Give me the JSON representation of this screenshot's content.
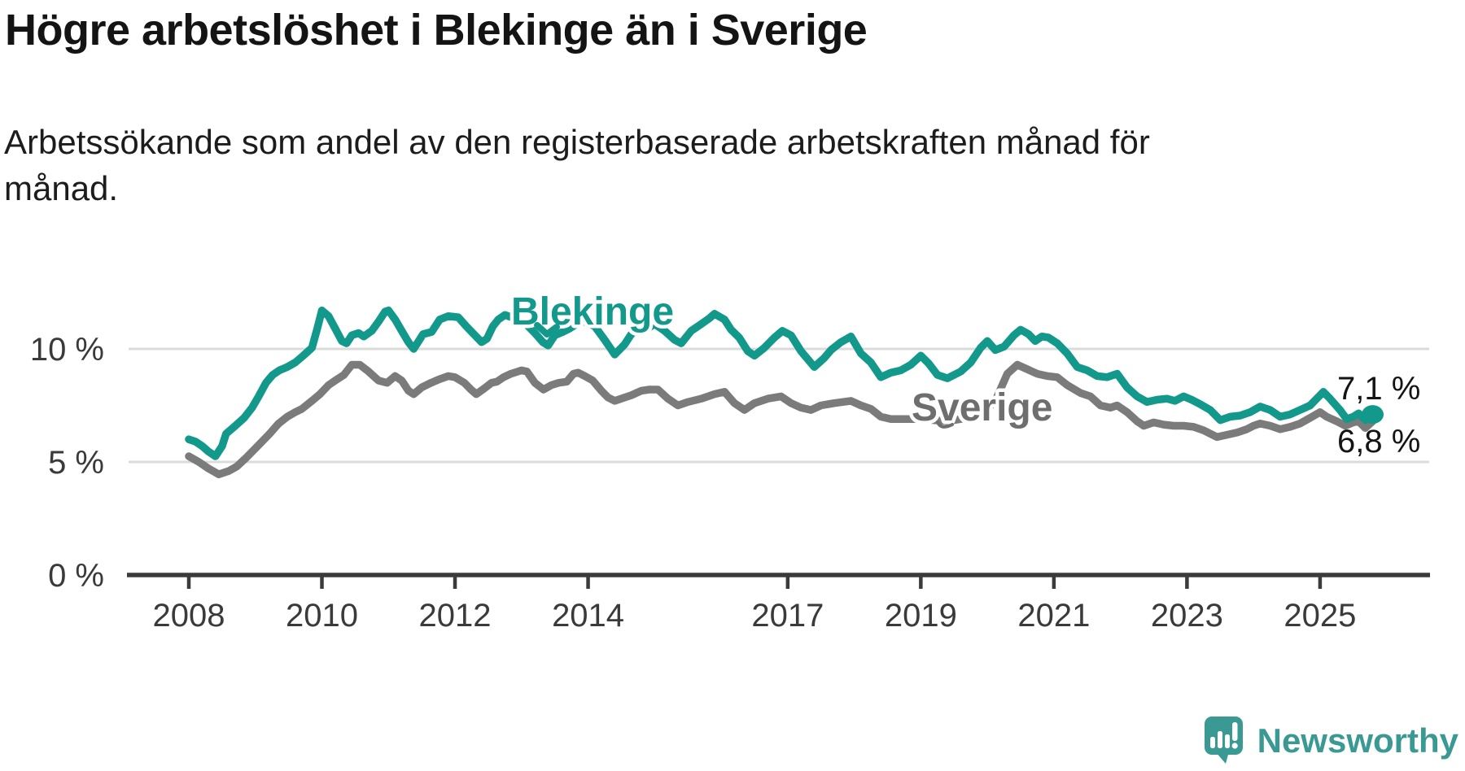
{
  "header": {
    "title": "Högre arbetslöshet i Blekinge än i Sverige",
    "subtitle_line1": "Arbetssökande som andel av den registerbaserade arbetskraften månad för",
    "subtitle_line2": "månad."
  },
  "branding": {
    "logo_text": "Newsworthy",
    "logo_color": "#3a9a93"
  },
  "chart_data": {
    "type": "line",
    "title": "Högre arbetslöshet i Blekinge än i Sverige",
    "subtitle": "Arbetssökande som andel av den registerbaserade arbetskraften månad för månad.",
    "unit": "%",
    "grid": "horizontal-only",
    "legend_position": "inline-labels",
    "colors": {
      "blekinge": "#12998b",
      "sverige": "#7b7b7b",
      "gridline": "#dbdbdb",
      "axis": "#3b3b3b"
    },
    "x_axis": {
      "range": [
        2008.0,
        2025.83
      ],
      "tick_labels": [
        "2008",
        "2010",
        "2012",
        "2014",
        "2017",
        "2019",
        "2021",
        "2023",
        "2025"
      ],
      "tick_values": [
        2008,
        2010,
        2012,
        2014,
        2017,
        2019,
        2021,
        2023,
        2025
      ]
    },
    "y_axis": {
      "range": [
        0,
        12.6
      ],
      "ticks": [
        {
          "value": 0,
          "label": "0 %"
        },
        {
          "value": 5,
          "label": "5 %"
        },
        {
          "value": 10,
          "label": "10 %"
        }
      ]
    },
    "series": [
      {
        "name": "Blekinge",
        "color": "#12998b",
        "end_label": "7,1 %",
        "end_value": 7.1,
        "points": [
          [
            2008.0,
            6.0
          ],
          [
            2008.1,
            5.9
          ],
          [
            2008.2,
            5.7
          ],
          [
            2008.3,
            5.45
          ],
          [
            2008.4,
            5.25
          ],
          [
            2008.5,
            5.7
          ],
          [
            2008.56,
            6.25
          ],
          [
            2008.7,
            6.6
          ],
          [
            2008.83,
            6.95
          ],
          [
            2008.95,
            7.4
          ],
          [
            2009.05,
            7.9
          ],
          [
            2009.16,
            8.5
          ],
          [
            2009.26,
            8.85
          ],
          [
            2009.36,
            9.05
          ],
          [
            2009.48,
            9.2
          ],
          [
            2009.6,
            9.4
          ],
          [
            2009.72,
            9.7
          ],
          [
            2009.85,
            10.05
          ],
          [
            2009.93,
            10.9
          ],
          [
            2010.0,
            11.7
          ],
          [
            2010.1,
            11.45
          ],
          [
            2010.2,
            10.9
          ],
          [
            2010.3,
            10.35
          ],
          [
            2010.37,
            10.25
          ],
          [
            2010.45,
            10.6
          ],
          [
            2010.55,
            10.7
          ],
          [
            2010.63,
            10.55
          ],
          [
            2010.75,
            10.8
          ],
          [
            2010.85,
            11.2
          ],
          [
            2010.95,
            11.65
          ],
          [
            2011.0,
            11.7
          ],
          [
            2011.1,
            11.3
          ],
          [
            2011.2,
            10.8
          ],
          [
            2011.3,
            10.3
          ],
          [
            2011.38,
            10.0
          ],
          [
            2011.52,
            10.65
          ],
          [
            2011.65,
            10.75
          ],
          [
            2011.77,
            11.3
          ],
          [
            2011.9,
            11.45
          ],
          [
            2012.05,
            11.4
          ],
          [
            2012.17,
            11.0
          ],
          [
            2012.3,
            10.6
          ],
          [
            2012.4,
            10.3
          ],
          [
            2012.48,
            10.45
          ],
          [
            2012.57,
            11.0
          ],
          [
            2012.65,
            11.3
          ],
          [
            2012.75,
            11.5
          ],
          [
            2012.9,
            11.35
          ],
          [
            2013.05,
            11.15
          ],
          [
            2013.2,
            10.7
          ],
          [
            2013.32,
            10.3
          ],
          [
            2013.4,
            10.15
          ],
          [
            2013.5,
            10.6
          ],
          [
            2013.62,
            10.75
          ],
          [
            2013.72,
            10.9
          ],
          [
            2013.85,
            11.15
          ],
          [
            2013.95,
            11.2
          ],
          [
            2014.1,
            11.0
          ],
          [
            2014.25,
            10.4
          ],
          [
            2014.4,
            9.75
          ],
          [
            2014.55,
            10.2
          ],
          [
            2014.65,
            10.65
          ],
          [
            2014.75,
            10.9
          ],
          [
            2014.82,
            10.75
          ],
          [
            2014.92,
            10.95
          ],
          [
            2015.0,
            11.1
          ],
          [
            2015.15,
            10.8
          ],
          [
            2015.3,
            10.4
          ],
          [
            2015.4,
            10.25
          ],
          [
            2015.55,
            10.8
          ],
          [
            2015.7,
            11.1
          ],
          [
            2015.82,
            11.35
          ],
          [
            2015.9,
            11.55
          ],
          [
            2016.05,
            11.3
          ],
          [
            2016.15,
            10.85
          ],
          [
            2016.27,
            10.5
          ],
          [
            2016.4,
            9.9
          ],
          [
            2016.5,
            9.7
          ],
          [
            2016.65,
            10.05
          ],
          [
            2016.8,
            10.5
          ],
          [
            2016.92,
            10.8
          ],
          [
            2017.05,
            10.6
          ],
          [
            2017.2,
            9.9
          ],
          [
            2017.4,
            9.2
          ],
          [
            2017.55,
            9.6
          ],
          [
            2017.65,
            9.95
          ],
          [
            2017.8,
            10.3
          ],
          [
            2017.95,
            10.55
          ],
          [
            2018.1,
            9.8
          ],
          [
            2018.25,
            9.4
          ],
          [
            2018.4,
            8.75
          ],
          [
            2018.55,
            8.95
          ],
          [
            2018.7,
            9.05
          ],
          [
            2018.85,
            9.3
          ],
          [
            2019.0,
            9.7
          ],
          [
            2019.12,
            9.35
          ],
          [
            2019.25,
            8.85
          ],
          [
            2019.4,
            8.7
          ],
          [
            2019.6,
            9.0
          ],
          [
            2019.75,
            9.4
          ],
          [
            2019.9,
            10.05
          ],
          [
            2020.0,
            10.35
          ],
          [
            2020.12,
            9.95
          ],
          [
            2020.25,
            10.1
          ],
          [
            2020.4,
            10.6
          ],
          [
            2020.5,
            10.85
          ],
          [
            2020.62,
            10.65
          ],
          [
            2020.72,
            10.35
          ],
          [
            2020.82,
            10.55
          ],
          [
            2020.92,
            10.5
          ],
          [
            2021.05,
            10.25
          ],
          [
            2021.2,
            9.8
          ],
          [
            2021.35,
            9.2
          ],
          [
            2021.5,
            9.05
          ],
          [
            2021.65,
            8.8
          ],
          [
            2021.8,
            8.75
          ],
          [
            2021.95,
            8.9
          ],
          [
            2022.1,
            8.3
          ],
          [
            2022.25,
            7.9
          ],
          [
            2022.4,
            7.65
          ],
          [
            2022.55,
            7.75
          ],
          [
            2022.7,
            7.8
          ],
          [
            2022.82,
            7.7
          ],
          [
            2022.95,
            7.9
          ],
          [
            2023.07,
            7.75
          ],
          [
            2023.2,
            7.55
          ],
          [
            2023.35,
            7.3
          ],
          [
            2023.5,
            6.85
          ],
          [
            2023.65,
            7.0
          ],
          [
            2023.8,
            7.05
          ],
          [
            2023.95,
            7.2
          ],
          [
            2024.1,
            7.45
          ],
          [
            2024.25,
            7.3
          ],
          [
            2024.4,
            7.0
          ],
          [
            2024.55,
            7.1
          ],
          [
            2024.7,
            7.3
          ],
          [
            2024.85,
            7.5
          ],
          [
            2024.95,
            7.8
          ],
          [
            2025.05,
            8.1
          ],
          [
            2025.15,
            7.8
          ],
          [
            2025.3,
            7.3
          ],
          [
            2025.4,
            6.9
          ],
          [
            2025.5,
            7.0
          ],
          [
            2025.58,
            7.15
          ],
          [
            2025.68,
            6.85
          ],
          [
            2025.79,
            7.1
          ]
        ]
      },
      {
        "name": "Sverige",
        "color": "#7b7b7b",
        "end_label": "6,8 %",
        "end_value": 6.8,
        "points": [
          [
            2008.0,
            5.25
          ],
          [
            2008.15,
            5.0
          ],
          [
            2008.3,
            4.7
          ],
          [
            2008.45,
            4.45
          ],
          [
            2008.6,
            4.6
          ],
          [
            2008.72,
            4.8
          ],
          [
            2008.85,
            5.15
          ],
          [
            2009.0,
            5.6
          ],
          [
            2009.2,
            6.2
          ],
          [
            2009.35,
            6.7
          ],
          [
            2009.48,
            7.0
          ],
          [
            2009.6,
            7.2
          ],
          [
            2009.7,
            7.35
          ],
          [
            2009.85,
            7.7
          ],
          [
            2009.97,
            8.0
          ],
          [
            2010.1,
            8.4
          ],
          [
            2010.2,
            8.6
          ],
          [
            2010.33,
            8.85
          ],
          [
            2010.45,
            9.3
          ],
          [
            2010.57,
            9.3
          ],
          [
            2010.7,
            9.0
          ],
          [
            2010.85,
            8.6
          ],
          [
            2010.98,
            8.5
          ],
          [
            2011.1,
            8.8
          ],
          [
            2011.2,
            8.6
          ],
          [
            2011.3,
            8.15
          ],
          [
            2011.38,
            8.0
          ],
          [
            2011.5,
            8.3
          ],
          [
            2011.64,
            8.5
          ],
          [
            2011.76,
            8.65
          ],
          [
            2011.9,
            8.8
          ],
          [
            2012.0,
            8.75
          ],
          [
            2012.14,
            8.5
          ],
          [
            2012.24,
            8.2
          ],
          [
            2012.32,
            8.0
          ],
          [
            2012.44,
            8.25
          ],
          [
            2012.55,
            8.5
          ],
          [
            2012.63,
            8.55
          ],
          [
            2012.73,
            8.75
          ],
          [
            2012.84,
            8.9
          ],
          [
            2013.0,
            9.05
          ],
          [
            2013.08,
            9.0
          ],
          [
            2013.2,
            8.5
          ],
          [
            2013.33,
            8.2
          ],
          [
            2013.45,
            8.4
          ],
          [
            2013.56,
            8.5
          ],
          [
            2013.68,
            8.55
          ],
          [
            2013.78,
            8.9
          ],
          [
            2013.85,
            8.95
          ],
          [
            2013.95,
            8.8
          ],
          [
            2014.07,
            8.6
          ],
          [
            2014.2,
            8.15
          ],
          [
            2014.3,
            7.85
          ],
          [
            2014.4,
            7.7
          ],
          [
            2014.55,
            7.85
          ],
          [
            2014.65,
            7.95
          ],
          [
            2014.8,
            8.15
          ],
          [
            2014.92,
            8.2
          ],
          [
            2015.05,
            8.2
          ],
          [
            2015.2,
            7.8
          ],
          [
            2015.35,
            7.5
          ],
          [
            2015.5,
            7.65
          ],
          [
            2015.7,
            7.8
          ],
          [
            2015.9,
            8.0
          ],
          [
            2016.05,
            8.1
          ],
          [
            2016.2,
            7.6
          ],
          [
            2016.35,
            7.3
          ],
          [
            2016.5,
            7.6
          ],
          [
            2016.7,
            7.8
          ],
          [
            2016.9,
            7.9
          ],
          [
            2017.05,
            7.6
          ],
          [
            2017.2,
            7.4
          ],
          [
            2017.35,
            7.3
          ],
          [
            2017.5,
            7.5
          ],
          [
            2017.7,
            7.6
          ],
          [
            2017.95,
            7.7
          ],
          [
            2018.1,
            7.5
          ],
          [
            2018.25,
            7.35
          ],
          [
            2018.4,
            7.0
          ],
          [
            2018.55,
            6.9
          ],
          [
            2018.75,
            6.9
          ],
          [
            2018.95,
            6.9
          ],
          [
            2019.2,
            6.85
          ],
          [
            2019.4,
            6.8
          ],
          [
            2019.6,
            6.9
          ],
          [
            2019.8,
            7.0
          ],
          [
            2020.0,
            7.3
          ],
          [
            2020.15,
            7.9
          ],
          [
            2020.3,
            8.9
          ],
          [
            2020.45,
            9.3
          ],
          [
            2020.6,
            9.1
          ],
          [
            2020.75,
            8.9
          ],
          [
            2020.9,
            8.8
          ],
          [
            2021.05,
            8.75
          ],
          [
            2021.2,
            8.4
          ],
          [
            2021.4,
            8.05
          ],
          [
            2021.55,
            7.9
          ],
          [
            2021.7,
            7.5
          ],
          [
            2021.85,
            7.4
          ],
          [
            2021.95,
            7.5
          ],
          [
            2022.1,
            7.2
          ],
          [
            2022.25,
            6.8
          ],
          [
            2022.35,
            6.6
          ],
          [
            2022.5,
            6.75
          ],
          [
            2022.65,
            6.65
          ],
          [
            2022.8,
            6.6
          ],
          [
            2022.95,
            6.6
          ],
          [
            2023.1,
            6.55
          ],
          [
            2023.25,
            6.4
          ],
          [
            2023.45,
            6.1
          ],
          [
            2023.6,
            6.2
          ],
          [
            2023.75,
            6.3
          ],
          [
            2023.9,
            6.45
          ],
          [
            2024.0,
            6.6
          ],
          [
            2024.1,
            6.7
          ],
          [
            2024.25,
            6.6
          ],
          [
            2024.4,
            6.45
          ],
          [
            2024.55,
            6.55
          ],
          [
            2024.7,
            6.7
          ],
          [
            2024.85,
            6.95
          ],
          [
            2025.0,
            7.2
          ],
          [
            2025.1,
            7.0
          ],
          [
            2025.25,
            6.8
          ],
          [
            2025.38,
            6.6
          ],
          [
            2025.5,
            6.75
          ],
          [
            2025.58,
            6.8
          ],
          [
            2025.68,
            6.5
          ],
          [
            2025.79,
            6.8
          ]
        ]
      }
    ]
  }
}
